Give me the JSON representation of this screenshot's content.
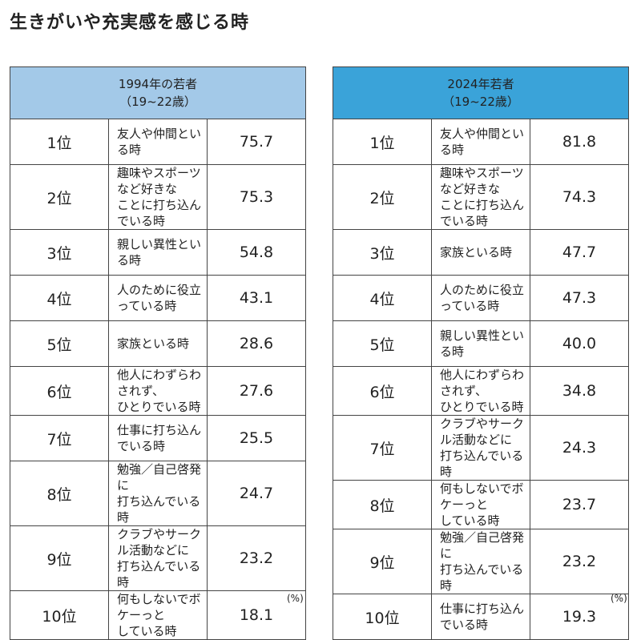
{
  "title": "生きがいや充実感を感じる時",
  "unit": "(%)",
  "colors": {
    "header_1994": "#a3c9e8",
    "header_2024": "#3aa3d9"
  },
  "tables": [
    {
      "header": "1994年の若者\n（19~22歳）",
      "rows": [
        {
          "rank": "1位",
          "item": "友人や仲間といる時",
          "value": "75.7"
        },
        {
          "rank": "2位",
          "item": "趣味やスポーツなど好きな\nことに打ち込んでいる時",
          "value": "75.3"
        },
        {
          "rank": "3位",
          "item": "親しい異性といる時",
          "value": "54.8"
        },
        {
          "rank": "4位",
          "item": "人のために役立っている時",
          "value": "43.1"
        },
        {
          "rank": "5位",
          "item": "家族といる時",
          "value": "28.6"
        },
        {
          "rank": "6位",
          "item": "他人にわずらわされず、\nひとりでいる時",
          "value": "27.6"
        },
        {
          "rank": "7位",
          "item": "仕事に打ち込んでいる時",
          "value": "25.5"
        },
        {
          "rank": "8位",
          "item": "勉強／自己啓発に\n打ち込んでいる時",
          "value": "24.7"
        },
        {
          "rank": "9位",
          "item": "クラブやサークル活動などに\n打ち込んでいる時",
          "value": "23.2"
        },
        {
          "rank": "10位",
          "item": "何もしないでボケーっと\nしている時",
          "value": "18.1"
        }
      ]
    },
    {
      "header": "2024年若者\n（19~22歳）",
      "rows": [
        {
          "rank": "1位",
          "item": "友人や仲間といる時",
          "value": "81.8"
        },
        {
          "rank": "2位",
          "item": "趣味やスポーツなど好きな\nことに打ち込んでいる時",
          "value": "74.3"
        },
        {
          "rank": "3位",
          "item": "家族といる時",
          "value": "47.7"
        },
        {
          "rank": "4位",
          "item": "人のために役立っている時",
          "value": "47.3"
        },
        {
          "rank": "5位",
          "item": "親しい異性といる時",
          "value": "40.0"
        },
        {
          "rank": "6位",
          "item": "他人にわずらわされず、\nひとりでいる時",
          "value": "34.8"
        },
        {
          "rank": "7位",
          "item": "クラブやサークル活動などに\n打ち込んでいる時",
          "value": "24.3"
        },
        {
          "rank": "8位",
          "item": "何もしないでボケーっと\nしている時",
          "value": "23.7"
        },
        {
          "rank": "9位",
          "item": "勉強／自己啓発に\n打ち込んでいる時",
          "value": "23.2"
        },
        {
          "rank": "10位",
          "item": "仕事に打ち込んでいる時",
          "value": "19.3"
        }
      ]
    }
  ]
}
